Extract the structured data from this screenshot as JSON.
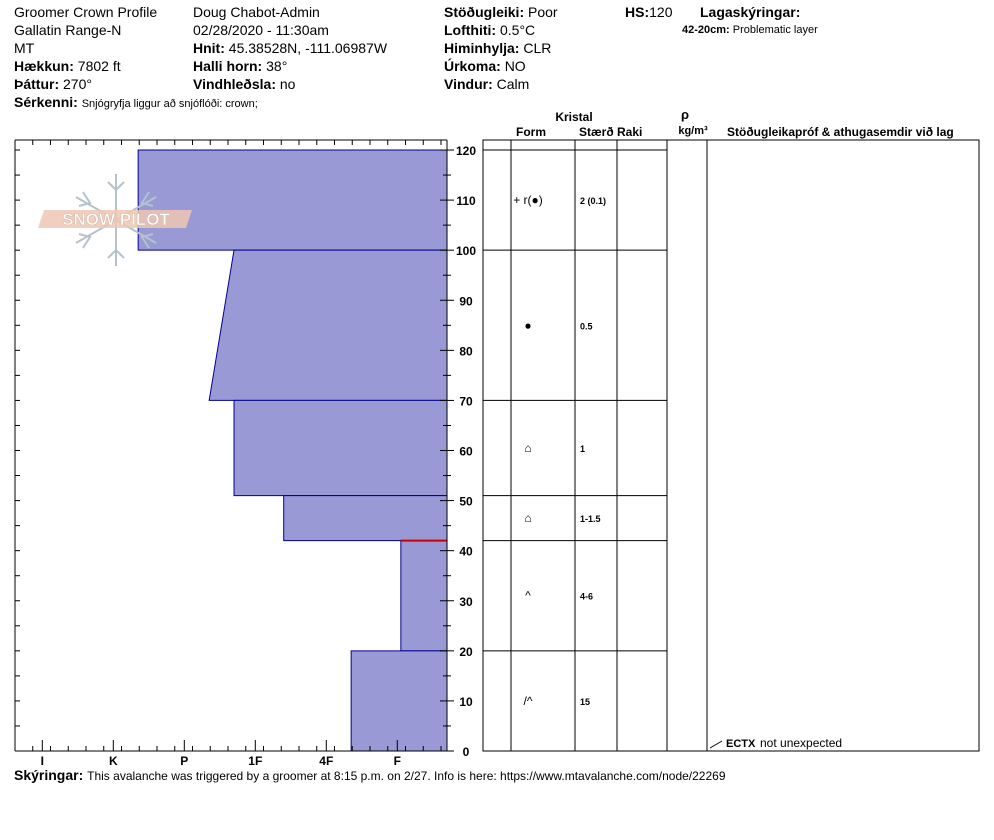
{
  "header": {
    "title": "Groomer Crown Profile",
    "range": "Gallatin Range-N",
    "state": "MT",
    "elevation_label": "Hækkun:",
    "elevation_value": "7802 ft",
    "aspect_label": "Þáttur:",
    "aspect_value": "270°",
    "observer": "Doug Chabot-Admin",
    "datetime": "02/28/2020 - 11:30am",
    "coords_label": "Hnit:",
    "coords_value": "45.38528N, -111.06987W",
    "slope_label": "Halli horn:",
    "slope_value": "38°",
    "wind_loading_label": "Vindhleðsla:",
    "wind_loading_value": "no",
    "stability_label": "Stöðugleiki:",
    "stability_value": "Poor",
    "air_temp_label": "Lofthiti:",
    "air_temp_value": "0.5°C",
    "sky_label": "Himinhylja:",
    "sky_value": "CLR",
    "precip_label": "Úrkoma:",
    "precip_value": "NO",
    "wind_label": "Vindur:",
    "wind_value": "Calm",
    "hs_label": "HS:",
    "hs_value": "120",
    "legend_label": "Lagaskýringar:",
    "legend_range": "42-20cm:",
    "legend_text": "Problematic layer",
    "features_label": "Sérkenni:",
    "features_value": "Snjógryfja liggur að snjóflóði: crown;"
  },
  "logo_text": "SNOW PILOT",
  "table": {
    "kristal": "Kristal",
    "form": "Form",
    "size": "Stærð",
    "moisture": "Raki",
    "rho": "ρ",
    "density_unit": "kg/m³",
    "stability_header": "Stöðugleikapróf & athugasemdir við lag"
  },
  "test": {
    "name": "ECTX",
    "comment": "not unexpected"
  },
  "comments_label": "Skýringar:",
  "comments_text": "This avalanche was triggered by a groomer at 8:15 p.m. on 2/27. Info is here: https://www.mtavalanche.com/node/22269",
  "colors": {
    "layer_fill": "#9999d6",
    "layer_stroke": "#00008b",
    "problem_line": "#cc0000"
  },
  "chart_data": {
    "type": "bar",
    "orientation": "horizontal",
    "y_axis": {
      "label": "",
      "range": [
        0,
        120
      ],
      "ticks": [
        0,
        10,
        20,
        30,
        40,
        50,
        60,
        70,
        80,
        90,
        100,
        110,
        120
      ]
    },
    "hardness_scale": [
      "I",
      "K",
      "P",
      "1F",
      "4F",
      "F"
    ],
    "layers": [
      {
        "top": 120,
        "bottom": 100,
        "hardness_top": 4.35,
        "hardness_bottom": 4.35,
        "form_symbol": "+ r(●)",
        "size": "2 (0.1)"
      },
      {
        "top": 100,
        "bottom": 70,
        "hardness_top": 3.0,
        "hardness_bottom": 3.35,
        "form_symbol": "●",
        "size": "0.5"
      },
      {
        "top": 70,
        "bottom": 51,
        "hardness_top": 3.0,
        "hardness_bottom": 3.0,
        "form_symbol": "⌂",
        "size": "1"
      },
      {
        "top": 51,
        "bottom": 42,
        "hardness_top": 2.3,
        "hardness_bottom": 2.3,
        "form_symbol": "⌂",
        "size": "1-1.5"
      },
      {
        "top": 42,
        "bottom": 20,
        "hardness_top": 0.65,
        "hardness_bottom": 0.65,
        "form_symbol": "^",
        "size": "4-6"
      },
      {
        "top": 20,
        "bottom": 0,
        "hardness_top": 1.35,
        "hardness_bottom": 1.35,
        "form_symbol": "/^",
        "size": "15"
      }
    ],
    "problem_layer_depth": 42,
    "test_depth": 0
  }
}
